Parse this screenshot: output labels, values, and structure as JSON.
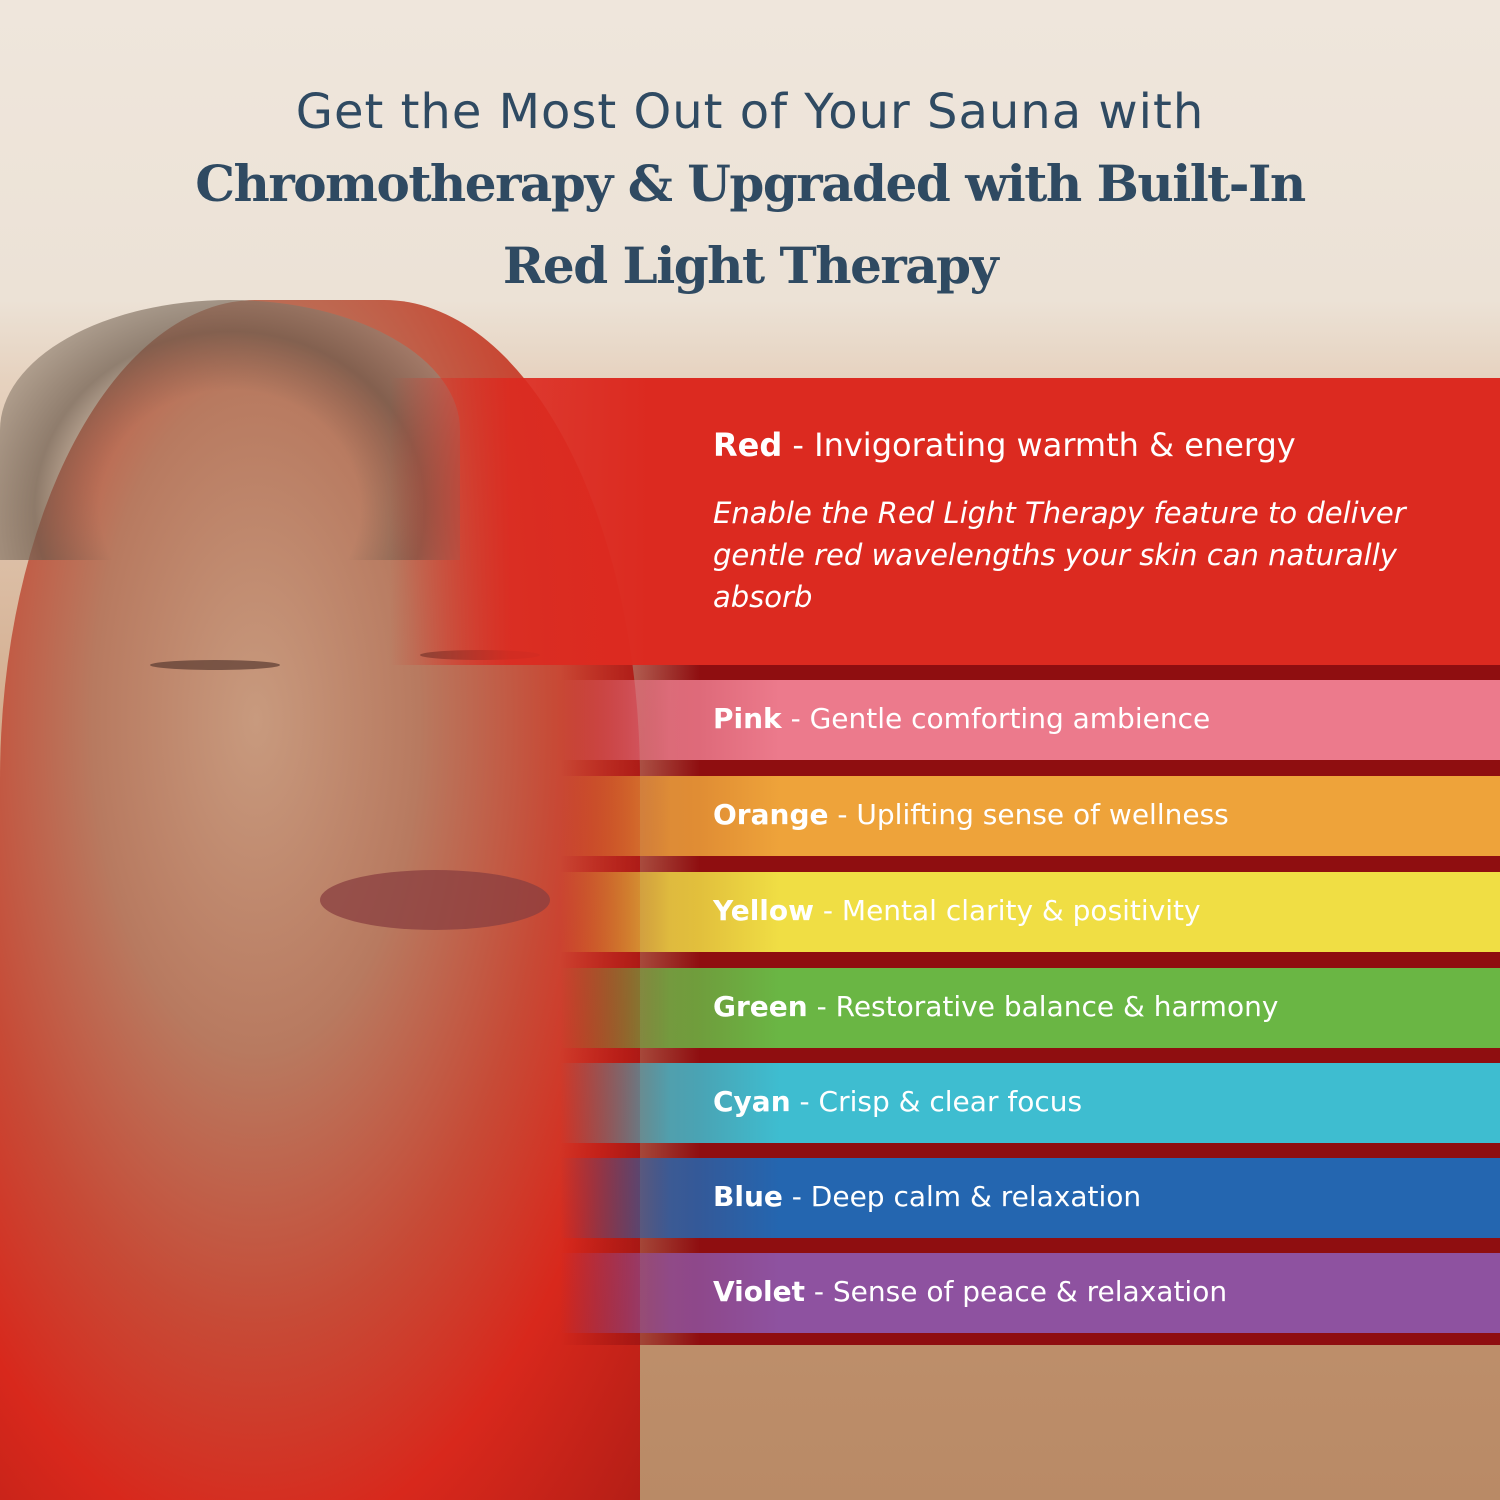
{
  "heading": {
    "line1": "Get the Most Out of Your Sauna with",
    "line2": "Chromotherapy & Upgraded with Built-In",
    "line3": "Red Light Therapy"
  },
  "red": {
    "name": "Red",
    "separator": " - ",
    "benefit": "Invigorating warmth & energy",
    "description": "Enable the Red Light Therapy feature to deliver gentle red wavelengths your skin can naturally absorb",
    "color": "#dc2a20"
  },
  "colors": [
    {
      "name": "Pink",
      "benefit": "Gentle comforting ambience",
      "color": "#ec7a8c"
    },
    {
      "name": "Orange",
      "benefit": "Uplifting sense of wellness",
      "color": "#eea33a"
    },
    {
      "name": "Yellow",
      "benefit": "Mental clarity & positivity",
      "color": "#f0de44"
    },
    {
      "name": "Green",
      "benefit": "Restorative balance & harmony",
      "color": "#6ab644"
    },
    {
      "name": "Cyan",
      "benefit": "Crisp & clear focus",
      "color": "#3ebdd0"
    },
    {
      "name": "Blue",
      "benefit": "Deep calm & relaxation",
      "color": "#2466b0"
    },
    {
      "name": "Violet",
      "benefit": "Sense of peace & relaxation",
      "color": "#8e52a0"
    }
  ],
  "separator": " - "
}
